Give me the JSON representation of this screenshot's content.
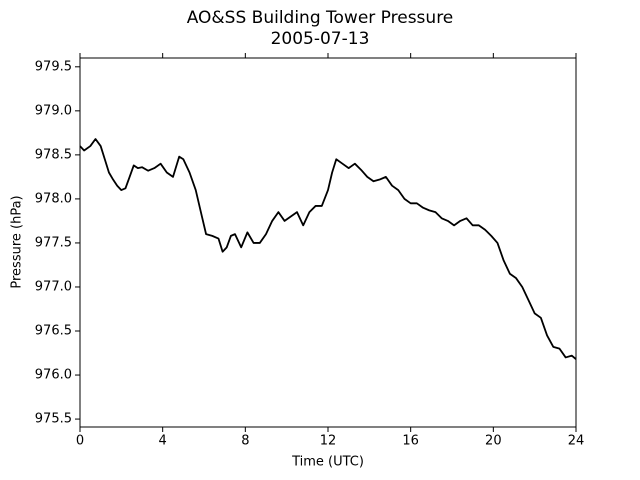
{
  "chart_data": {
    "type": "line",
    "title": "AO&SS Building Tower Pressure",
    "subtitle": "2005-07-13",
    "x_label": "Time (UTC)",
    "y_label": "Pressure (hPa)",
    "xlim": [
      0,
      24
    ],
    "xticks": [
      0,
      4,
      8,
      12,
      16,
      20,
      24
    ],
    "ylim": [
      975.41,
      979.6
    ],
    "yticks": [
      975.5,
      {
        "value": 976,
        "label": "976.0"
      },
      976.5,
      {
        "value": 977,
        "label": "977.0"
      },
      977.5,
      {
        "value": 978,
        "label": "978.0"
      },
      978.5,
      {
        "value": 979,
        "label": "979.0"
      },
      979.5
    ],
    "x": [
      0,
      0.2,
      0.5,
      0.75,
      1.0,
      1.2,
      1.4,
      1.6,
      1.8,
      2.0,
      2.2,
      2.4,
      2.6,
      2.8,
      3.0,
      3.3,
      3.6,
      3.9,
      4.2,
      4.5,
      4.8,
      5.0,
      5.3,
      5.6,
      5.9,
      6.1,
      6.4,
      6.7,
      6.9,
      7.1,
      7.3,
      7.5,
      7.8,
      8.1,
      8.4,
      8.7,
      9.0,
      9.3,
      9.6,
      9.9,
      10.2,
      10.5,
      10.8,
      11.1,
      11.4,
      11.7,
      12.0,
      12.2,
      12.4,
      12.7,
      13.0,
      13.3,
      13.6,
      13.9,
      14.2,
      14.5,
      14.8,
      15.1,
      15.4,
      15.7,
      16.0,
      16.3,
      16.6,
      16.9,
      17.2,
      17.5,
      17.8,
      18.1,
      18.4,
      18.7,
      19.0,
      19.3,
      19.6,
      19.9,
      20.2,
      20.5,
      20.8,
      21.1,
      21.4,
      21.7,
      22.0,
      22.3,
      22.6,
      22.9,
      23.2,
      23.5,
      23.8,
      24.0
    ],
    "series": [
      {
        "name": "Pressure",
        "color": "#000000",
        "values": [
          978.6,
          978.55,
          978.6,
          978.68,
          978.6,
          978.45,
          978.3,
          978.22,
          978.15,
          978.1,
          978.12,
          978.25,
          978.38,
          978.35,
          978.36,
          978.32,
          978.35,
          978.4,
          978.3,
          978.25,
          978.48,
          978.45,
          978.3,
          978.1,
          977.8,
          977.6,
          977.58,
          977.55,
          977.4,
          977.45,
          977.58,
          977.6,
          977.45,
          977.62,
          977.5,
          977.5,
          977.6,
          977.75,
          977.85,
          977.75,
          977.8,
          977.85,
          977.7,
          977.85,
          977.92,
          977.92,
          978.1,
          978.3,
          978.45,
          978.4,
          978.35,
          978.4,
          978.33,
          978.25,
          978.2,
          978.22,
          978.25,
          978.15,
          978.1,
          978.0,
          977.95,
          977.95,
          977.9,
          977.87,
          977.85,
          977.78,
          977.75,
          977.7,
          977.75,
          977.78,
          977.7,
          977.7,
          977.65,
          977.58,
          977.5,
          977.3,
          977.15,
          977.1,
          977.0,
          976.85,
          976.7,
          976.65,
          976.45,
          976.32,
          976.3,
          976.2,
          976.22,
          976.18
        ]
      }
    ]
  }
}
